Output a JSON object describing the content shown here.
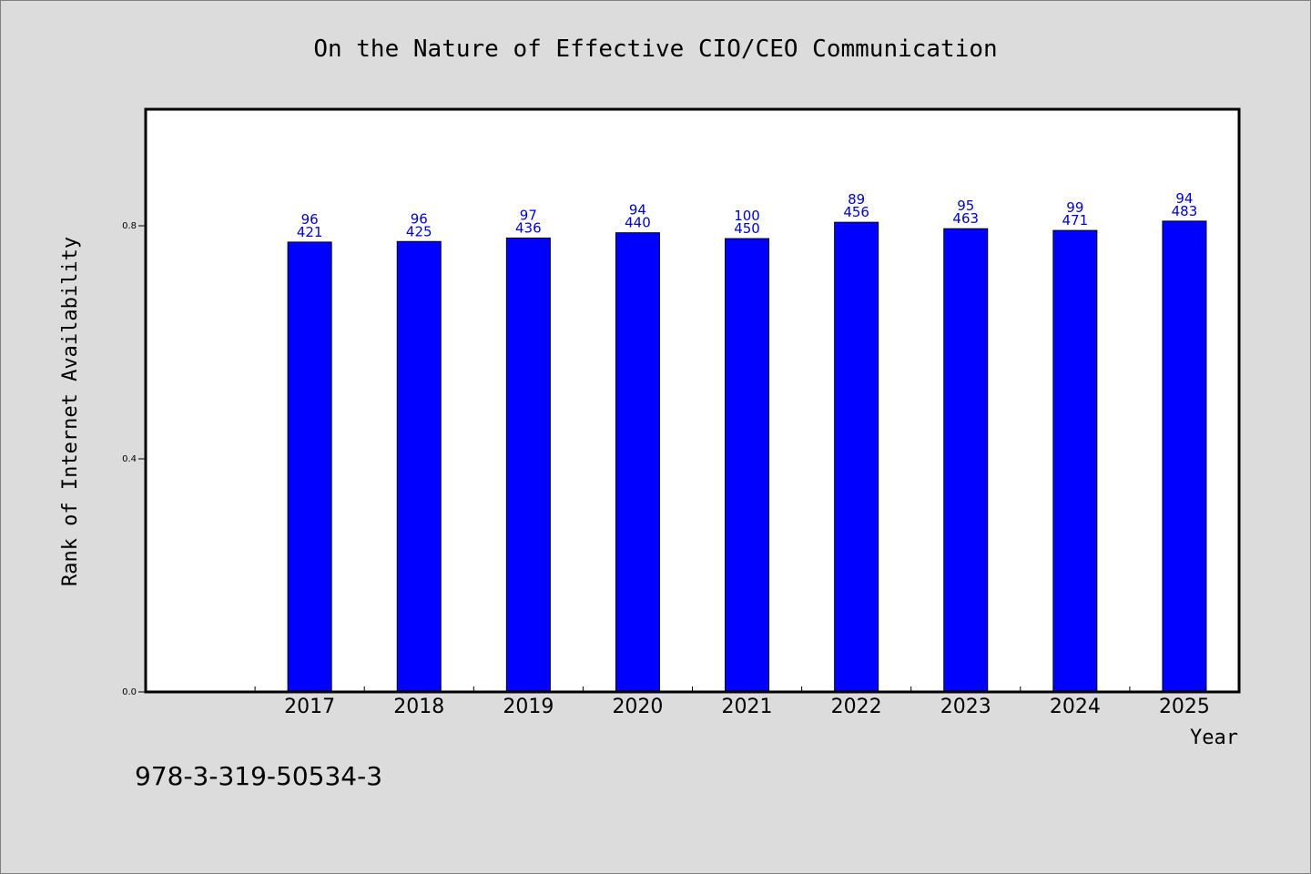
{
  "chart_data": {
    "type": "bar",
    "title": "On the Nature of Effective CIO/CEO Communication",
    "xlabel": "Year",
    "ylabel": "Rank of Internet Availability",
    "ylim": [
      0.0,
      1.0
    ],
    "yticks": [
      "0.0",
      "0.4",
      "0.8"
    ],
    "yticks_values": [
      0.0,
      0.4,
      0.8
    ],
    "categories": [
      "2017",
      "2018",
      "2019",
      "2020",
      "2021",
      "2022",
      "2023",
      "2024",
      "2025"
    ],
    "values": [
      0.772,
      0.773,
      0.779,
      0.788,
      0.778,
      0.806,
      0.795,
      0.792,
      0.808
    ],
    "annotations_top": [
      "96",
      "96",
      "97",
      "94",
      "100",
      "89",
      "95",
      "99",
      "94"
    ],
    "annotations_bottom": [
      "421",
      "425",
      "436",
      "440",
      "450",
      "456",
      "463",
      "471",
      "483"
    ],
    "legend": "none",
    "grid": false,
    "colors": {
      "bar_fill": "#0000ff",
      "bar_stroke": "#000000",
      "label_color": "#0000cc",
      "plot_background": "#ffffff",
      "page_background": "#dcdcdc"
    }
  },
  "footer": {
    "isbn": "978-3-319-50534-3"
  }
}
